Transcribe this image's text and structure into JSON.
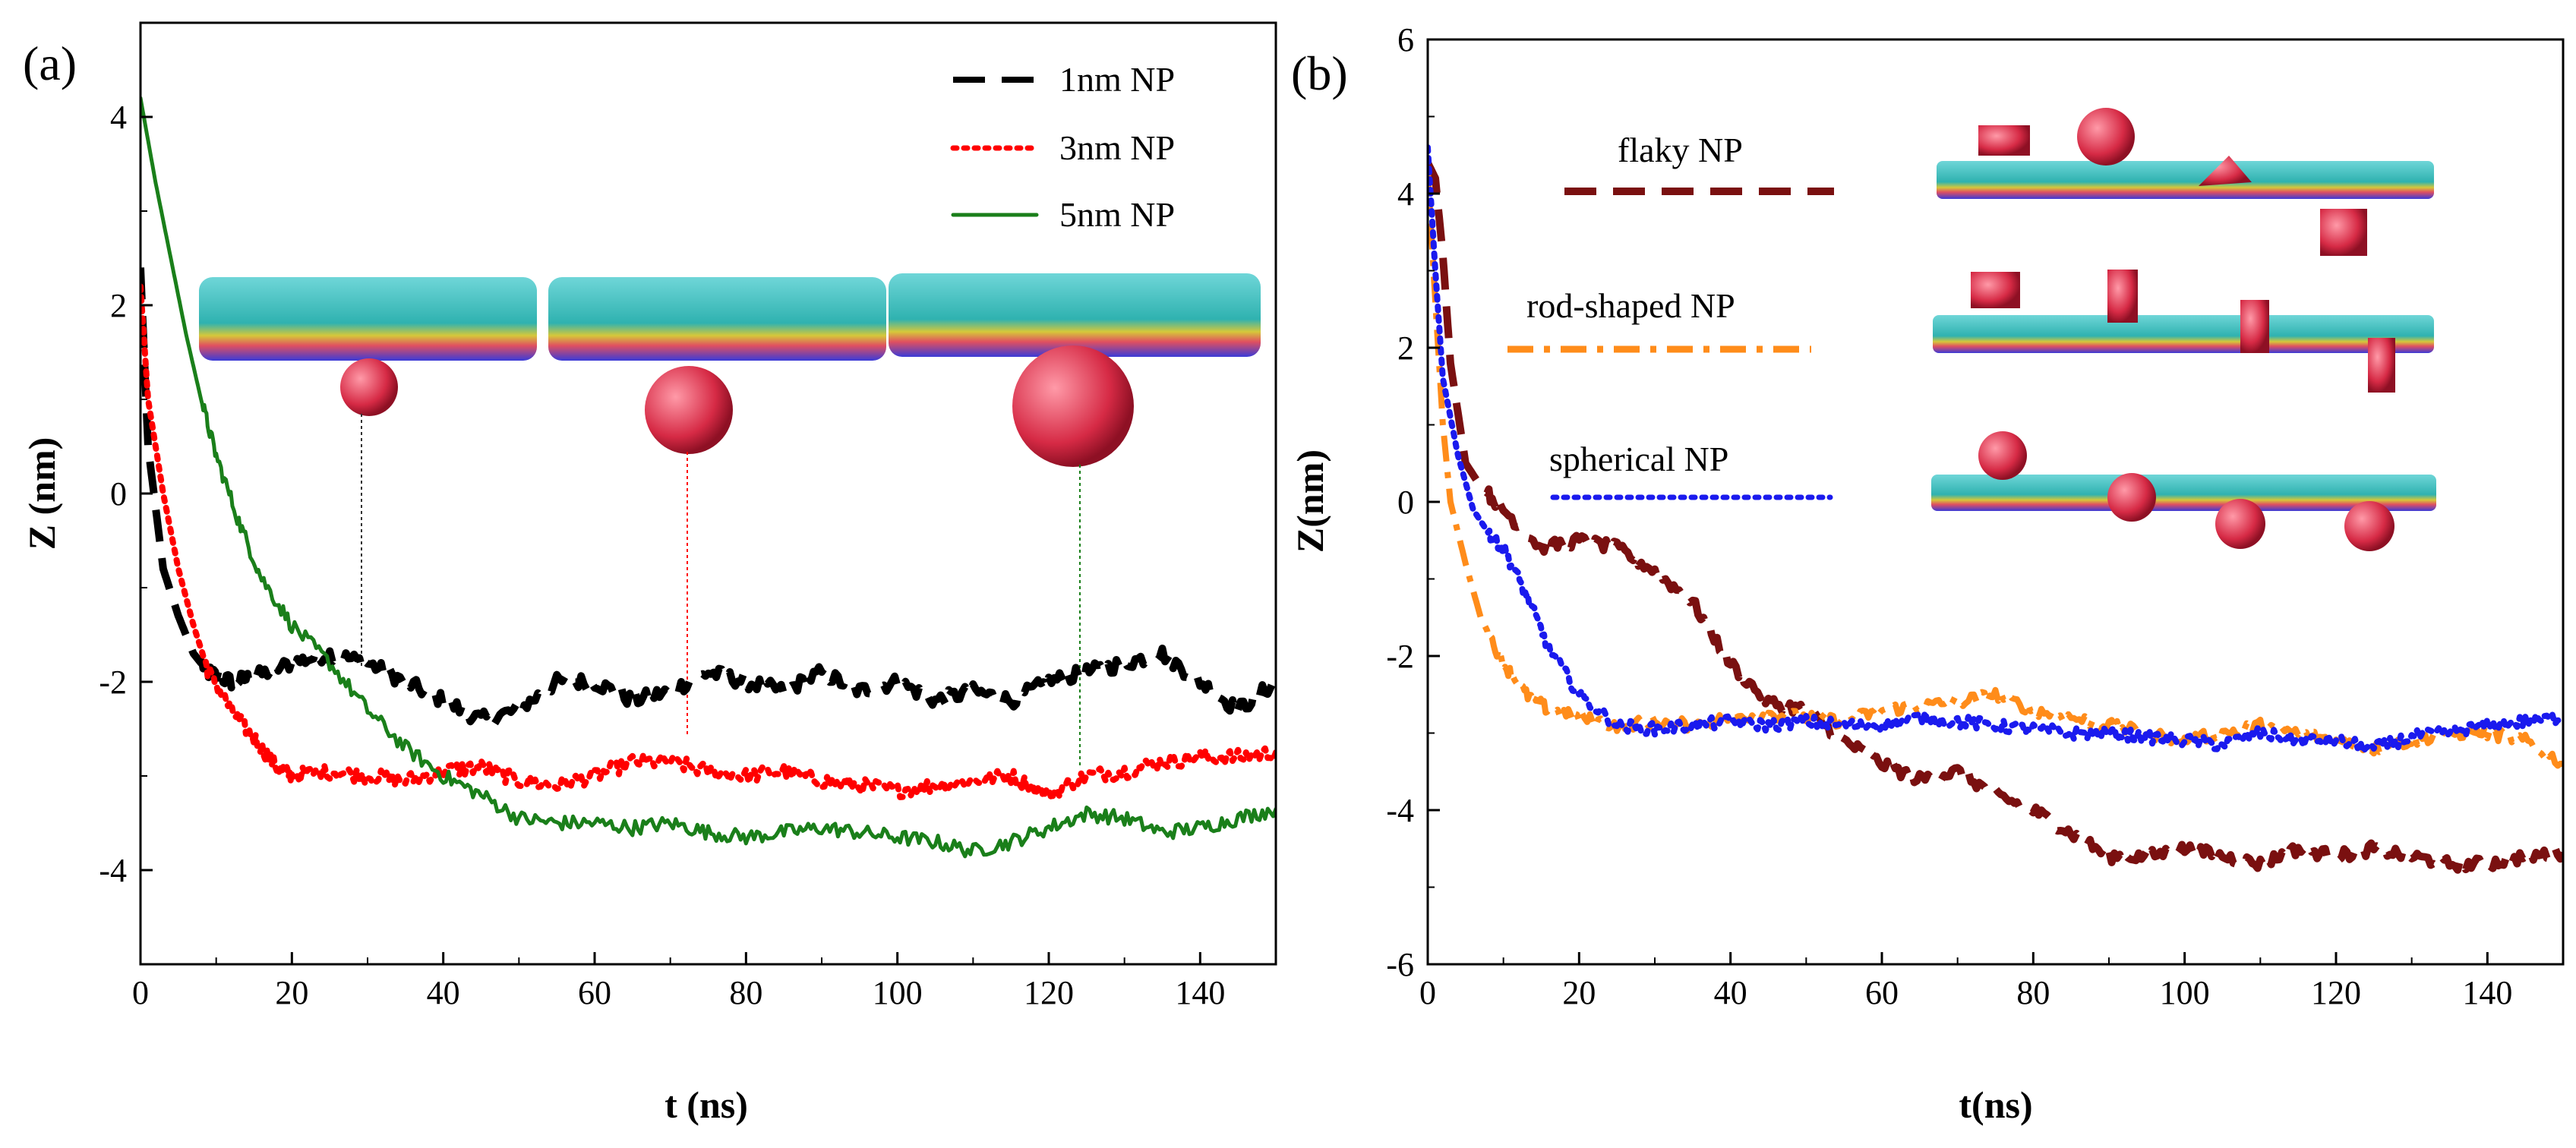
{
  "chart_data": [
    {
      "panel": "(a)",
      "type": "line",
      "xlabel": "t (ns)",
      "ylabel": "Z (nm)",
      "xlim": [
        0,
        150
      ],
      "ylim": [
        -5,
        5
      ],
      "xticks": [
        "0",
        "20",
        "40",
        "60",
        "80",
        "100",
        "120",
        "140"
      ],
      "yticks": [
        "-4",
        "-2",
        "0",
        "2",
        "4"
      ],
      "legend_position": "top-right",
      "series": [
        {
          "name": "1nm NP",
          "color": "#000000",
          "style": "dashed",
          "x": [
            0,
            1,
            3,
            5,
            7,
            9,
            12,
            15,
            20,
            25,
            30,
            35,
            40,
            45,
            50,
            55,
            60,
            65,
            70,
            75,
            80,
            85,
            90,
            95,
            100,
            105,
            110,
            115,
            120,
            125,
            130,
            135,
            140,
            145,
            150
          ],
          "y": [
            2.4,
            0.5,
            -0.8,
            -1.3,
            -1.7,
            -1.9,
            -2.0,
            -1.95,
            -1.8,
            -1.7,
            -1.8,
            -2.0,
            -2.2,
            -2.4,
            -2.3,
            -2.0,
            -2.0,
            -2.2,
            -2.1,
            -1.9,
            -2.0,
            -2.1,
            -1.9,
            -2.1,
            -2.0,
            -2.2,
            -2.1,
            -2.2,
            -2.0,
            -1.9,
            -1.8,
            -1.7,
            -2.0,
            -2.3,
            -2.0
          ]
        },
        {
          "name": "3nm NP",
          "color": "#ff0000",
          "style": "dotted",
          "x": [
            0,
            1,
            3,
            5,
            7,
            9,
            12,
            15,
            18,
            20,
            25,
            30,
            35,
            40,
            45,
            50,
            55,
            60,
            65,
            70,
            75,
            80,
            85,
            90,
            95,
            100,
            105,
            110,
            115,
            120,
            125,
            130,
            135,
            140,
            145,
            150
          ],
          "y": [
            2.2,
            1.0,
            0.0,
            -0.8,
            -1.4,
            -1.9,
            -2.3,
            -2.6,
            -2.9,
            -3.0,
            -2.95,
            -3.0,
            -3.05,
            -2.95,
            -2.9,
            -3.05,
            -3.1,
            -3.0,
            -2.85,
            -2.85,
            -2.95,
            -3.0,
            -2.95,
            -3.05,
            -3.1,
            -3.15,
            -3.1,
            -3.05,
            -3.0,
            -3.2,
            -3.0,
            -2.95,
            -2.85,
            -2.8,
            -2.8,
            -2.75
          ]
        },
        {
          "name": "5nm NP",
          "color": "#1a7f1a",
          "style": "solid",
          "x": [
            0,
            2,
            4,
            6,
            8,
            10,
            13,
            16,
            20,
            25,
            30,
            35,
            40,
            45,
            50,
            55,
            60,
            65,
            70,
            75,
            80,
            85,
            90,
            95,
            100,
            105,
            110,
            115,
            120,
            125,
            130,
            135,
            140,
            145,
            150
          ],
          "y": [
            4.2,
            3.3,
            2.5,
            1.7,
            1.0,
            0.4,
            -0.3,
            -0.9,
            -1.4,
            -1.8,
            -2.3,
            -2.7,
            -3.0,
            -3.2,
            -3.45,
            -3.5,
            -3.5,
            -3.55,
            -3.5,
            -3.6,
            -3.65,
            -3.6,
            -3.55,
            -3.6,
            -3.65,
            -3.7,
            -3.8,
            -3.7,
            -3.55,
            -3.4,
            -3.45,
            -3.6,
            -3.55,
            -3.45,
            -3.35
          ]
        }
      ]
    },
    {
      "panel": "(b)",
      "type": "line",
      "xlabel": "t(ns)",
      "ylabel": "Z(nm)",
      "xlim": [
        0,
        150
      ],
      "ylim": [
        -6,
        6
      ],
      "xticks": [
        "0",
        "20",
        "40",
        "60",
        "80",
        "100",
        "120",
        "140"
      ],
      "yticks": [
        "-6",
        "-4",
        "-2",
        "0",
        "2",
        "4",
        "6"
      ],
      "legend_position": "top-left",
      "series": [
        {
          "name": "flaky NP",
          "color": "#7a1010",
          "style": "dashed",
          "x": [
            0,
            1,
            2,
            3,
            5,
            7,
            10,
            15,
            20,
            25,
            30,
            35,
            40,
            45,
            50,
            55,
            60,
            65,
            70,
            75,
            80,
            85,
            90,
            95,
            100,
            105,
            110,
            115,
            120,
            125,
            130,
            135,
            140,
            145,
            150
          ],
          "y": [
            4.4,
            4.2,
            3.2,
            1.8,
            0.5,
            0.2,
            -0.1,
            -0.6,
            -0.5,
            -0.6,
            -0.9,
            -1.3,
            -2.1,
            -2.6,
            -2.7,
            -3.1,
            -3.4,
            -3.6,
            -3.5,
            -3.8,
            -4.0,
            -4.3,
            -4.6,
            -4.6,
            -4.5,
            -4.6,
            -4.7,
            -4.5,
            -4.6,
            -4.5,
            -4.6,
            -4.7,
            -4.7,
            -4.6,
            -4.55
          ]
        },
        {
          "name": "rod-shaped NP",
          "color": "#ff8c1a",
          "style": "dashdot",
          "x": [
            0,
            1,
            2,
            3,
            5,
            7,
            10,
            13,
            16,
            20,
            25,
            30,
            35,
            40,
            45,
            50,
            55,
            60,
            65,
            70,
            75,
            80,
            85,
            90,
            95,
            100,
            105,
            110,
            115,
            120,
            125,
            130,
            135,
            140,
            145,
            150
          ],
          "y": [
            4.3,
            2.6,
            1.0,
            0.0,
            -0.8,
            -1.5,
            -2.1,
            -2.5,
            -2.7,
            -2.8,
            -2.9,
            -2.85,
            -2.9,
            -2.8,
            -2.75,
            -2.8,
            -2.85,
            -2.7,
            -2.65,
            -2.6,
            -2.5,
            -2.7,
            -2.8,
            -2.9,
            -3.0,
            -3.1,
            -3.0,
            -2.9,
            -3.0,
            -3.1,
            -3.2,
            -3.1,
            -3.0,
            -3.0,
            -3.1,
            -3.4
          ]
        },
        {
          "name": "spherical NP",
          "color": "#1a1aee",
          "style": "dotted",
          "x": [
            0,
            1,
            2,
            4,
            6,
            8,
            10,
            13,
            16,
            20,
            25,
            30,
            35,
            40,
            45,
            50,
            55,
            60,
            65,
            70,
            75,
            80,
            85,
            90,
            95,
            100,
            105,
            110,
            115,
            120,
            125,
            130,
            135,
            140,
            145,
            150
          ],
          "y": [
            4.6,
            3.0,
            1.6,
            0.6,
            -0.1,
            -0.4,
            -0.6,
            -1.2,
            -1.9,
            -2.5,
            -2.9,
            -2.95,
            -2.9,
            -2.85,
            -2.9,
            -2.85,
            -2.9,
            -2.9,
            -2.8,
            -2.85,
            -2.9,
            -2.95,
            -3.0,
            -3.0,
            -3.05,
            -3.1,
            -3.15,
            -3.0,
            -3.1,
            -3.1,
            -3.2,
            -3.05,
            -3.0,
            -2.9,
            -2.85,
            -2.8
          ]
        }
      ]
    }
  ]
}
